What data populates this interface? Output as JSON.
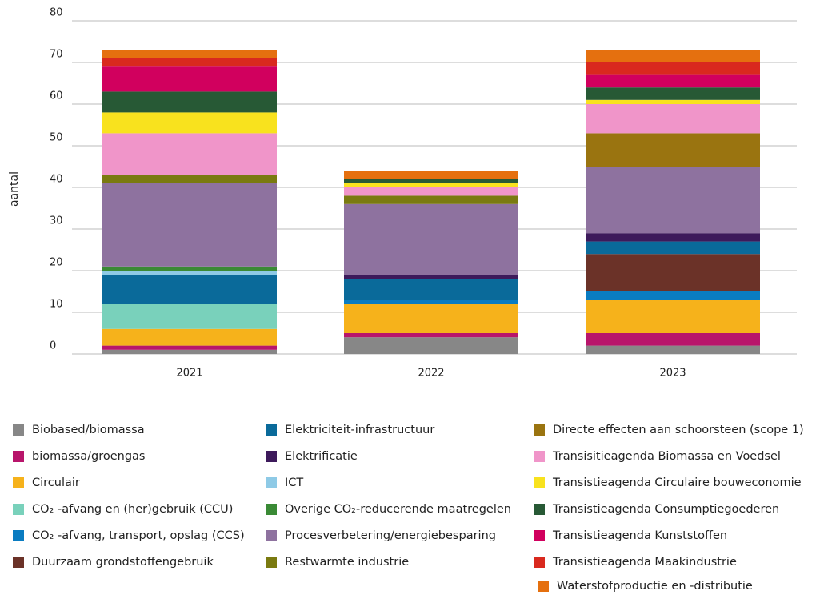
{
  "chart_data": {
    "type": "stacked_bar",
    "y_label": "aantal",
    "categories": [
      "2021",
      "2022",
      "2023"
    ],
    "ylim": [
      0,
      80
    ],
    "yticks": [
      0,
      10,
      20,
      30,
      40,
      50,
      60,
      70,
      80
    ],
    "grid": true,
    "series": [
      {
        "name": "Biobased/biomassa",
        "color": "#878787",
        "values": [
          1,
          4,
          2
        ]
      },
      {
        "name": "biomassa/groengas",
        "color": "#b8156b",
        "values": [
          1,
          1,
          3
        ]
      },
      {
        "name": "Circulair",
        "color": "#f6b21b",
        "values": [
          4,
          7,
          8
        ]
      },
      {
        "name": "CO₂ -afvang en (her)gebruik (CCU)",
        "color": "#79d1bb",
        "values": [
          6,
          0,
          0
        ]
      },
      {
        "name": "CO₂ -afvang, transport, opslag (CCS)",
        "color": "#0a7cc1",
        "values": [
          0,
          1,
          2
        ]
      },
      {
        "name": "Duurzaam grondstoffengebruik",
        "color": "#6b3228",
        "values": [
          0,
          0,
          9
        ]
      },
      {
        "name": "Elektriciteit-infrastructuur",
        "color": "#0a6a9a",
        "values": [
          7,
          5,
          3
        ]
      },
      {
        "name": "Elektrificatie",
        "color": "#3d1a5b",
        "values": [
          0,
          1,
          2
        ]
      },
      {
        "name": "ICT",
        "color": "#8ecae6",
        "values": [
          1,
          0,
          0
        ]
      },
      {
        "name": "Overige CO₂-reducerende maatregelen",
        "color": "#3a8a35",
        "values": [
          1,
          0,
          0
        ]
      },
      {
        "name": "Procesverbetering/energiebesparing",
        "color": "#8e729f",
        "values": [
          20,
          17,
          16
        ]
      },
      {
        "name": "Restwarmte industrie",
        "color": "#7a7a10",
        "values": [
          2,
          2,
          0
        ]
      },
      {
        "name": "Directe effecten aan schoorsteen (scope 1)",
        "color": "#9a7410",
        "values": [
          0,
          0,
          8
        ]
      },
      {
        "name": "Transisitieagenda Biomassa en Voedsel",
        "color": "#f095c9",
        "values": [
          10,
          2,
          7
        ]
      },
      {
        "name": "Transistieagenda Circulaire bouweconomie",
        "color": "#f8e21e",
        "values": [
          5,
          1,
          1
        ]
      },
      {
        "name": "Transistieagenda Consumptiegoederen",
        "color": "#275935",
        "values": [
          5,
          1,
          3
        ]
      },
      {
        "name": "Transistieagenda Kunststoffen",
        "color": "#d1005e",
        "values": [
          6,
          0,
          3
        ]
      },
      {
        "name": "Transistieagenda Maakindustrie",
        "color": "#d9291e",
        "values": [
          2,
          0,
          3
        ]
      },
      {
        "name": "Waterstofproductie en -distributie",
        "color": "#e5700f",
        "values": [
          2,
          2,
          3
        ]
      }
    ]
  }
}
